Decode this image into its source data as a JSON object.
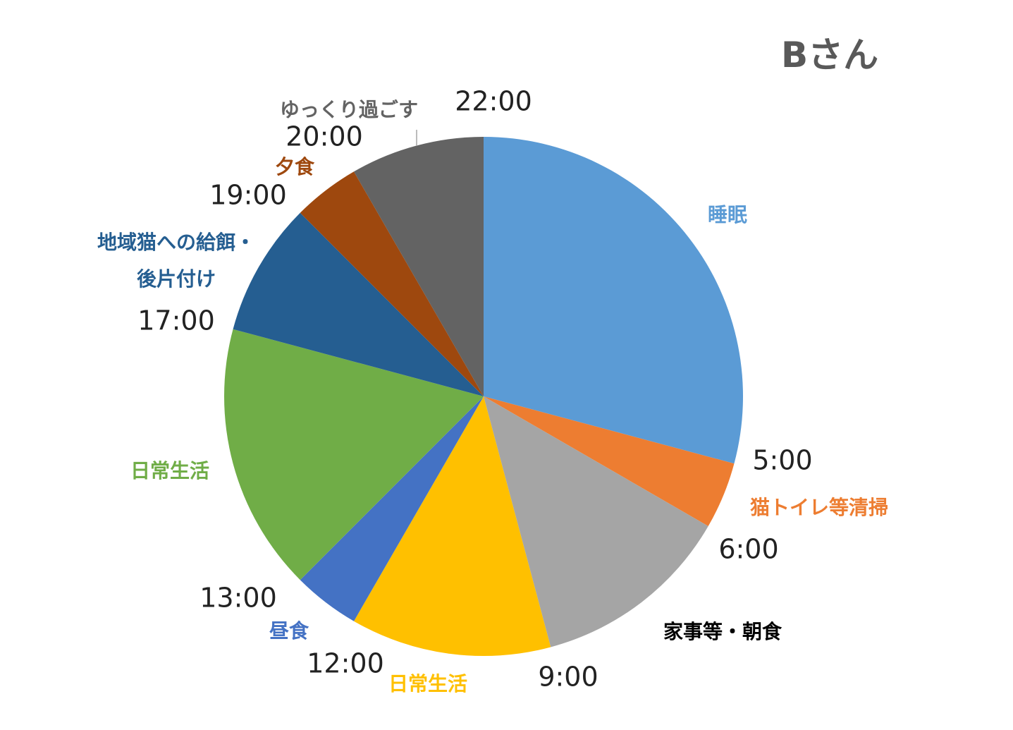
{
  "chart_data": {
    "type": "pie",
    "title": "Bさん",
    "unit": "hours",
    "start_angle_time": "22:00",
    "slices": [
      {
        "label": "睡眠",
        "start": "22:00",
        "end": "5:00",
        "value": 7,
        "color": "#5B9BD5"
      },
      {
        "label": "猫トイレ等清掃",
        "start": "5:00",
        "end": "6:00",
        "value": 1,
        "color": "#ED7D31"
      },
      {
        "label": "家事等・朝食",
        "start": "6:00",
        "end": "9:00",
        "value": 3,
        "color": "#A5A5A5",
        "label_color": "#000000"
      },
      {
        "label": "日常生活",
        "start": "9:00",
        "end": "12:00",
        "value": 3,
        "color": "#FFC000"
      },
      {
        "label": "昼食",
        "start": "12:00",
        "end": "13:00",
        "value": 1,
        "color": "#4472C4"
      },
      {
        "label": "日常生活",
        "start": "13:00",
        "end": "17:00",
        "value": 4,
        "color": "#70AD47"
      },
      {
        "label": "地域猫への給餌・後片付け",
        "label_lines": [
          "地域猫への給餌・",
          "後片付け"
        ],
        "start": "17:00",
        "end": "19:00",
        "value": 2,
        "color": "#255E91"
      },
      {
        "label": "夕食",
        "start": "19:00",
        "end": "20:00",
        "value": 1,
        "color": "#9E480E"
      },
      {
        "label": "ゆっくり過ごす",
        "start": "20:00",
        "end": "22:00",
        "value": 2,
        "color": "#636363",
        "label_color": "#636363"
      }
    ],
    "time_labels": [
      "22:00",
      "5:00",
      "6:00",
      "9:00",
      "12:00",
      "13:00",
      "17:00",
      "19:00",
      "20:00"
    ]
  }
}
